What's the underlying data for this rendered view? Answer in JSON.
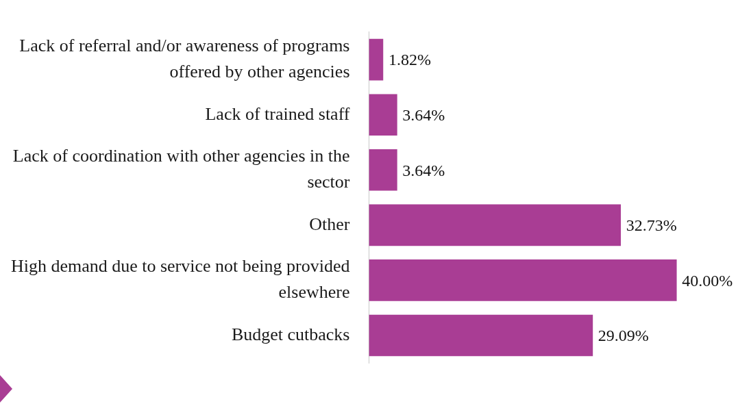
{
  "chart_data": {
    "type": "bar",
    "orientation": "horizontal",
    "categories": [
      "Lack of referral and/or awareness of programs offered by other agencies",
      "Lack of trained staff",
      "Lack of coordination with other agencies in the sector",
      "Other",
      "High demand due to service not being provided elsewhere",
      "Budget cutbacks"
    ],
    "values": [
      1.82,
      3.64,
      3.64,
      32.73,
      40.0,
      29.09
    ],
    "value_labels": [
      "1.82%",
      "3.64%",
      "3.64%",
      "32.73%",
      "40.00%",
      "29.09%"
    ],
    "color": "#a93d94",
    "xlim": [
      0,
      48
    ],
    "grid": false,
    "legend": false
  }
}
